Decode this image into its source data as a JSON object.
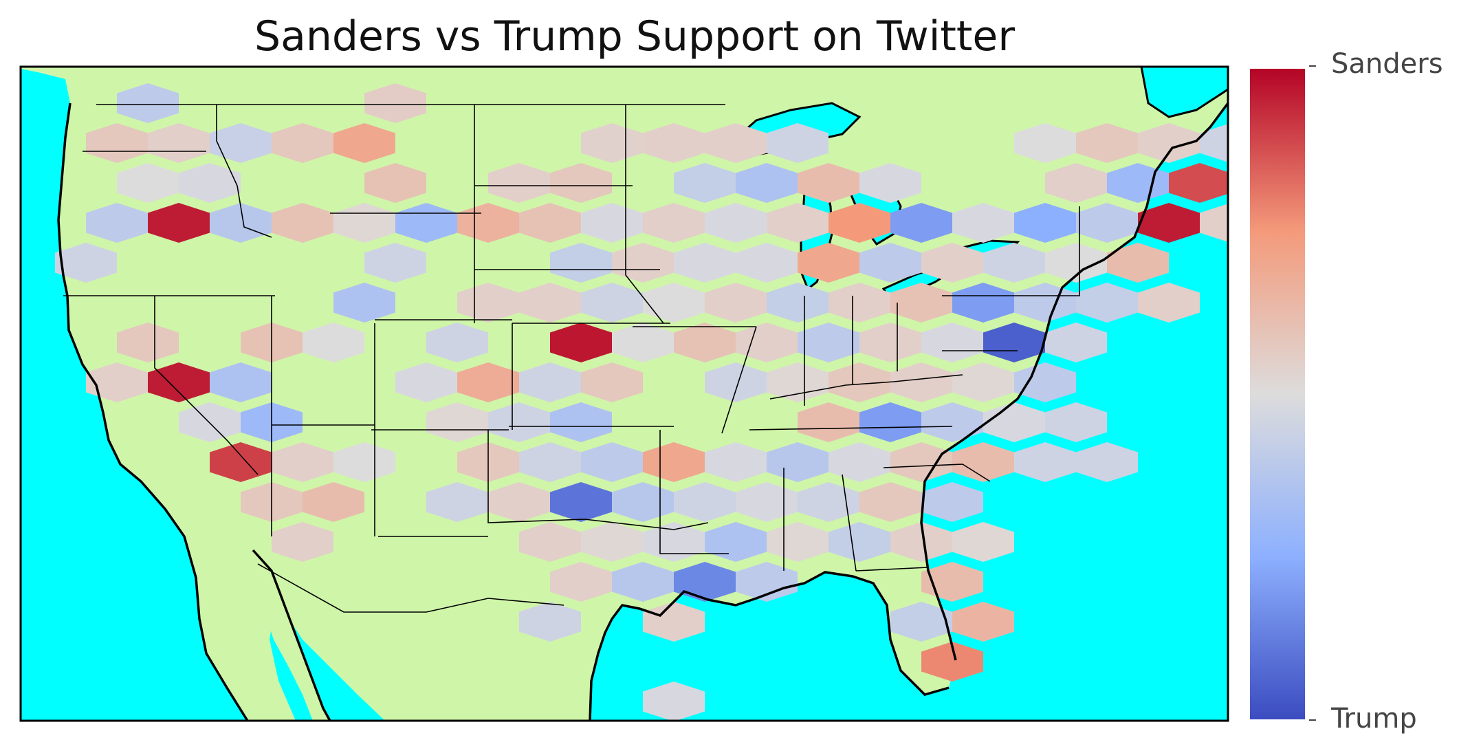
{
  "title": "Sanders vs Trump Support on Twitter",
  "colorbar": {
    "top_label": "Sanders",
    "bottom_label": "Trump"
  },
  "colors": {
    "ocean": "#00ffff",
    "land": "#cff5a9",
    "coast": "#000000",
    "border": "#000000",
    "scale": [
      "#3b4cc0",
      "#8db0fe",
      "#dddcdc",
      "#f49a7b",
      "#b40426"
    ]
  },
  "hexbin_cells": [
    {
      "col": 1,
      "row": 0,
      "v": 0.4
    },
    {
      "col": 5,
      "row": 0,
      "v": 0.56
    },
    {
      "col": 0,
      "row": 1,
      "v": 0.58
    },
    {
      "col": 1,
      "row": 1,
      "v": 0.55
    },
    {
      "col": 2,
      "row": 1,
      "v": 0.43
    },
    {
      "col": 3,
      "row": 1,
      "v": 0.58
    },
    {
      "col": 4,
      "row": 1,
      "v": 0.7
    },
    {
      "col": 8,
      "row": 1,
      "v": 0.54
    },
    {
      "col": 9,
      "row": 1,
      "v": 0.55
    },
    {
      "col": 10,
      "row": 1,
      "v": 0.55
    },
    {
      "col": 11,
      "row": 1,
      "v": 0.45
    },
    {
      "col": 15,
      "row": 1,
      "v": 0.5
    },
    {
      "col": 16,
      "row": 1,
      "v": 0.58
    },
    {
      "col": 17,
      "row": 1,
      "v": 0.55
    },
    {
      "col": 18,
      "row": 1,
      "v": 0.45
    },
    {
      "col": 19,
      "row": 1,
      "v": 0.6
    },
    {
      "col": 1,
      "row": 2,
      "v": 0.5
    },
    {
      "col": 2,
      "row": 2,
      "v": 0.48
    },
    {
      "col": 5,
      "row": 2,
      "v": 0.6
    },
    {
      "col": 7,
      "row": 2,
      "v": 0.55
    },
    {
      "col": 8,
      "row": 2,
      "v": 0.58
    },
    {
      "col": 10,
      "row": 2,
      "v": 0.42
    },
    {
      "col": 11,
      "row": 2,
      "v": 0.35
    },
    {
      "col": 12,
      "row": 2,
      "v": 0.62
    },
    {
      "col": 13,
      "row": 2,
      "v": 0.48
    },
    {
      "col": 16,
      "row": 2,
      "v": 0.55
    },
    {
      "col": 17,
      "row": 2,
      "v": 0.3
    },
    {
      "col": 18,
      "row": 2,
      "v": 0.88
    },
    {
      "col": 19,
      "row": 2,
      "v": 0.48
    },
    {
      "col": 0,
      "row": 3,
      "v": 0.4
    },
    {
      "col": 1,
      "row": 3,
      "v": 0.96
    },
    {
      "col": 2,
      "row": 3,
      "v": 0.38
    },
    {
      "col": 3,
      "row": 3,
      "v": 0.6
    },
    {
      "col": 4,
      "row": 3,
      "v": 0.52
    },
    {
      "col": 5,
      "row": 3,
      "v": 0.3
    },
    {
      "col": 6,
      "row": 3,
      "v": 0.66
    },
    {
      "col": 7,
      "row": 3,
      "v": 0.6
    },
    {
      "col": 8,
      "row": 3,
      "v": 0.48
    },
    {
      "col": 9,
      "row": 3,
      "v": 0.55
    },
    {
      "col": 10,
      "row": 3,
      "v": 0.48
    },
    {
      "col": 11,
      "row": 3,
      "v": 0.55
    },
    {
      "col": 12,
      "row": 3,
      "v": 0.75
    },
    {
      "col": 13,
      "row": 3,
      "v": 0.2
    },
    {
      "col": 14,
      "row": 3,
      "v": 0.48
    },
    {
      "col": 15,
      "row": 3,
      "v": 0.25
    },
    {
      "col": 16,
      "row": 3,
      "v": 0.4
    },
    {
      "col": 17,
      "row": 3,
      "v": 0.96
    },
    {
      "col": 18,
      "row": 3,
      "v": 0.55
    },
    {
      "col": 0,
      "row": 4,
      "v": 0.45
    },
    {
      "col": 5,
      "row": 4,
      "v": 0.45
    },
    {
      "col": 8,
      "row": 4,
      "v": 0.42
    },
    {
      "col": 9,
      "row": 4,
      "v": 0.55
    },
    {
      "col": 10,
      "row": 4,
      "v": 0.48
    },
    {
      "col": 11,
      "row": 4,
      "v": 0.48
    },
    {
      "col": 12,
      "row": 4,
      "v": 0.7
    },
    {
      "col": 13,
      "row": 4,
      "v": 0.4
    },
    {
      "col": 14,
      "row": 4,
      "v": 0.55
    },
    {
      "col": 15,
      "row": 4,
      "v": 0.45
    },
    {
      "col": 16,
      "row": 4,
      "v": 0.5
    },
    {
      "col": 17,
      "row": 4,
      "v": 0.62
    },
    {
      "col": 4,
      "row": 5,
      "v": 0.35
    },
    {
      "col": 6,
      "row": 5,
      "v": 0.55
    },
    {
      "col": 7,
      "row": 5,
      "v": 0.55
    },
    {
      "col": 8,
      "row": 5,
      "v": 0.45
    },
    {
      "col": 9,
      "row": 5,
      "v": 0.5
    },
    {
      "col": 10,
      "row": 5,
      "v": 0.55
    },
    {
      "col": 11,
      "row": 5,
      "v": 0.42
    },
    {
      "col": 12,
      "row": 5,
      "v": 0.55
    },
    {
      "col": 13,
      "row": 5,
      "v": 0.6
    },
    {
      "col": 14,
      "row": 5,
      "v": 0.2
    },
    {
      "col": 15,
      "row": 5,
      "v": 0.4
    },
    {
      "col": 16,
      "row": 5,
      "v": 0.42
    },
    {
      "col": 17,
      "row": 5,
      "v": 0.55
    },
    {
      "col": 1,
      "row": 6,
      "v": 0.58
    },
    {
      "col": 3,
      "row": 6,
      "v": 0.6
    },
    {
      "col": 4,
      "row": 6,
      "v": 0.5
    },
    {
      "col": 6,
      "row": 6,
      "v": 0.45
    },
    {
      "col": 8,
      "row": 6,
      "v": 0.97
    },
    {
      "col": 9,
      "row": 6,
      "v": 0.5
    },
    {
      "col": 10,
      "row": 6,
      "v": 0.6
    },
    {
      "col": 11,
      "row": 6,
      "v": 0.55
    },
    {
      "col": 12,
      "row": 6,
      "v": 0.4
    },
    {
      "col": 13,
      "row": 6,
      "v": 0.55
    },
    {
      "col": 14,
      "row": 6,
      "v": 0.48
    },
    {
      "col": 15,
      "row": 6,
      "v": 0.05
    },
    {
      "col": 16,
      "row": 6,
      "v": 0.45
    },
    {
      "col": 0,
      "row": 7,
      "v": 0.55
    },
    {
      "col": 1,
      "row": 7,
      "v": 0.96
    },
    {
      "col": 2,
      "row": 7,
      "v": 0.35
    },
    {
      "col": 5,
      "row": 7,
      "v": 0.48
    },
    {
      "col": 6,
      "row": 7,
      "v": 0.68
    },
    {
      "col": 7,
      "row": 7,
      "v": 0.45
    },
    {
      "col": 8,
      "row": 7,
      "v": 0.58
    },
    {
      "col": 10,
      "row": 7,
      "v": 0.45
    },
    {
      "col": 11,
      "row": 7,
      "v": 0.52
    },
    {
      "col": 12,
      "row": 7,
      "v": 0.58
    },
    {
      "col": 13,
      "row": 7,
      "v": 0.55
    },
    {
      "col": 14,
      "row": 7,
      "v": 0.52
    },
    {
      "col": 15,
      "row": 7,
      "v": 0.4
    },
    {
      "col": 2,
      "row": 8,
      "v": 0.48
    },
    {
      "col": 3,
      "row": 8,
      "v": 0.3
    },
    {
      "col": 6,
      "row": 8,
      "v": 0.52
    },
    {
      "col": 7,
      "row": 8,
      "v": 0.45
    },
    {
      "col": 8,
      "row": 8,
      "v": 0.35
    },
    {
      "col": 12,
      "row": 8,
      "v": 0.62
    },
    {
      "col": 13,
      "row": 8,
      "v": 0.2
    },
    {
      "col": 14,
      "row": 8,
      "v": 0.4
    },
    {
      "col": 15,
      "row": 8,
      "v": 0.48
    },
    {
      "col": 16,
      "row": 8,
      "v": 0.45
    },
    {
      "col": 2,
      "row": 9,
      "v": 0.9
    },
    {
      "col": 3,
      "row": 9,
      "v": 0.55
    },
    {
      "col": 4,
      "row": 9,
      "v": 0.5
    },
    {
      "col": 6,
      "row": 9,
      "v": 0.58
    },
    {
      "col": 7,
      "row": 9,
      "v": 0.45
    },
    {
      "col": 8,
      "row": 9,
      "v": 0.4
    },
    {
      "col": 9,
      "row": 9,
      "v": 0.7
    },
    {
      "col": 10,
      "row": 9,
      "v": 0.48
    },
    {
      "col": 11,
      "row": 9,
      "v": 0.38
    },
    {
      "col": 12,
      "row": 9,
      "v": 0.48
    },
    {
      "col": 13,
      "row": 9,
      "v": 0.58
    },
    {
      "col": 14,
      "row": 9,
      "v": 0.62
    },
    {
      "col": 15,
      "row": 9,
      "v": 0.45
    },
    {
      "col": 16,
      "row": 9,
      "v": 0.45
    },
    {
      "col": 3,
      "row": 10,
      "v": 0.58
    },
    {
      "col": 4,
      "row": 10,
      "v": 0.62
    },
    {
      "col": 6,
      "row": 10,
      "v": 0.45
    },
    {
      "col": 7,
      "row": 10,
      "v": 0.55
    },
    {
      "col": 8,
      "row": 10,
      "v": 0.1
    },
    {
      "col": 9,
      "row": 10,
      "v": 0.38
    },
    {
      "col": 10,
      "row": 10,
      "v": 0.45
    },
    {
      "col": 11,
      "row": 10,
      "v": 0.48
    },
    {
      "col": 12,
      "row": 10,
      "v": 0.45
    },
    {
      "col": 13,
      "row": 10,
      "v": 0.58
    },
    {
      "col": 14,
      "row": 10,
      "v": 0.4
    },
    {
      "col": 3,
      "row": 11,
      "v": 0.55
    },
    {
      "col": 7,
      "row": 11,
      "v": 0.55
    },
    {
      "col": 8,
      "row": 11,
      "v": 0.52
    },
    {
      "col": 9,
      "row": 11,
      "v": 0.48
    },
    {
      "col": 10,
      "row": 11,
      "v": 0.35
    },
    {
      "col": 11,
      "row": 11,
      "v": 0.52
    },
    {
      "col": 12,
      "row": 11,
      "v": 0.42
    },
    {
      "col": 13,
      "row": 11,
      "v": 0.55
    },
    {
      "col": 14,
      "row": 11,
      "v": 0.52
    },
    {
      "col": 8,
      "row": 12,
      "v": 0.55
    },
    {
      "col": 9,
      "row": 12,
      "v": 0.38
    },
    {
      "col": 10,
      "row": 12,
      "v": 0.15
    },
    {
      "col": 11,
      "row": 12,
      "v": 0.4
    },
    {
      "col": 14,
      "row": 12,
      "v": 0.62
    },
    {
      "col": 7,
      "row": 13,
      "v": 0.45
    },
    {
      "col": 9,
      "row": 13,
      "v": 0.55
    },
    {
      "col": 13,
      "row": 13,
      "v": 0.42
    },
    {
      "col": 14,
      "row": 13,
      "v": 0.65
    },
    {
      "col": 14,
      "row": 14,
      "v": 0.78
    },
    {
      "col": 9,
      "row": 15,
      "v": 0.48
    }
  ]
}
